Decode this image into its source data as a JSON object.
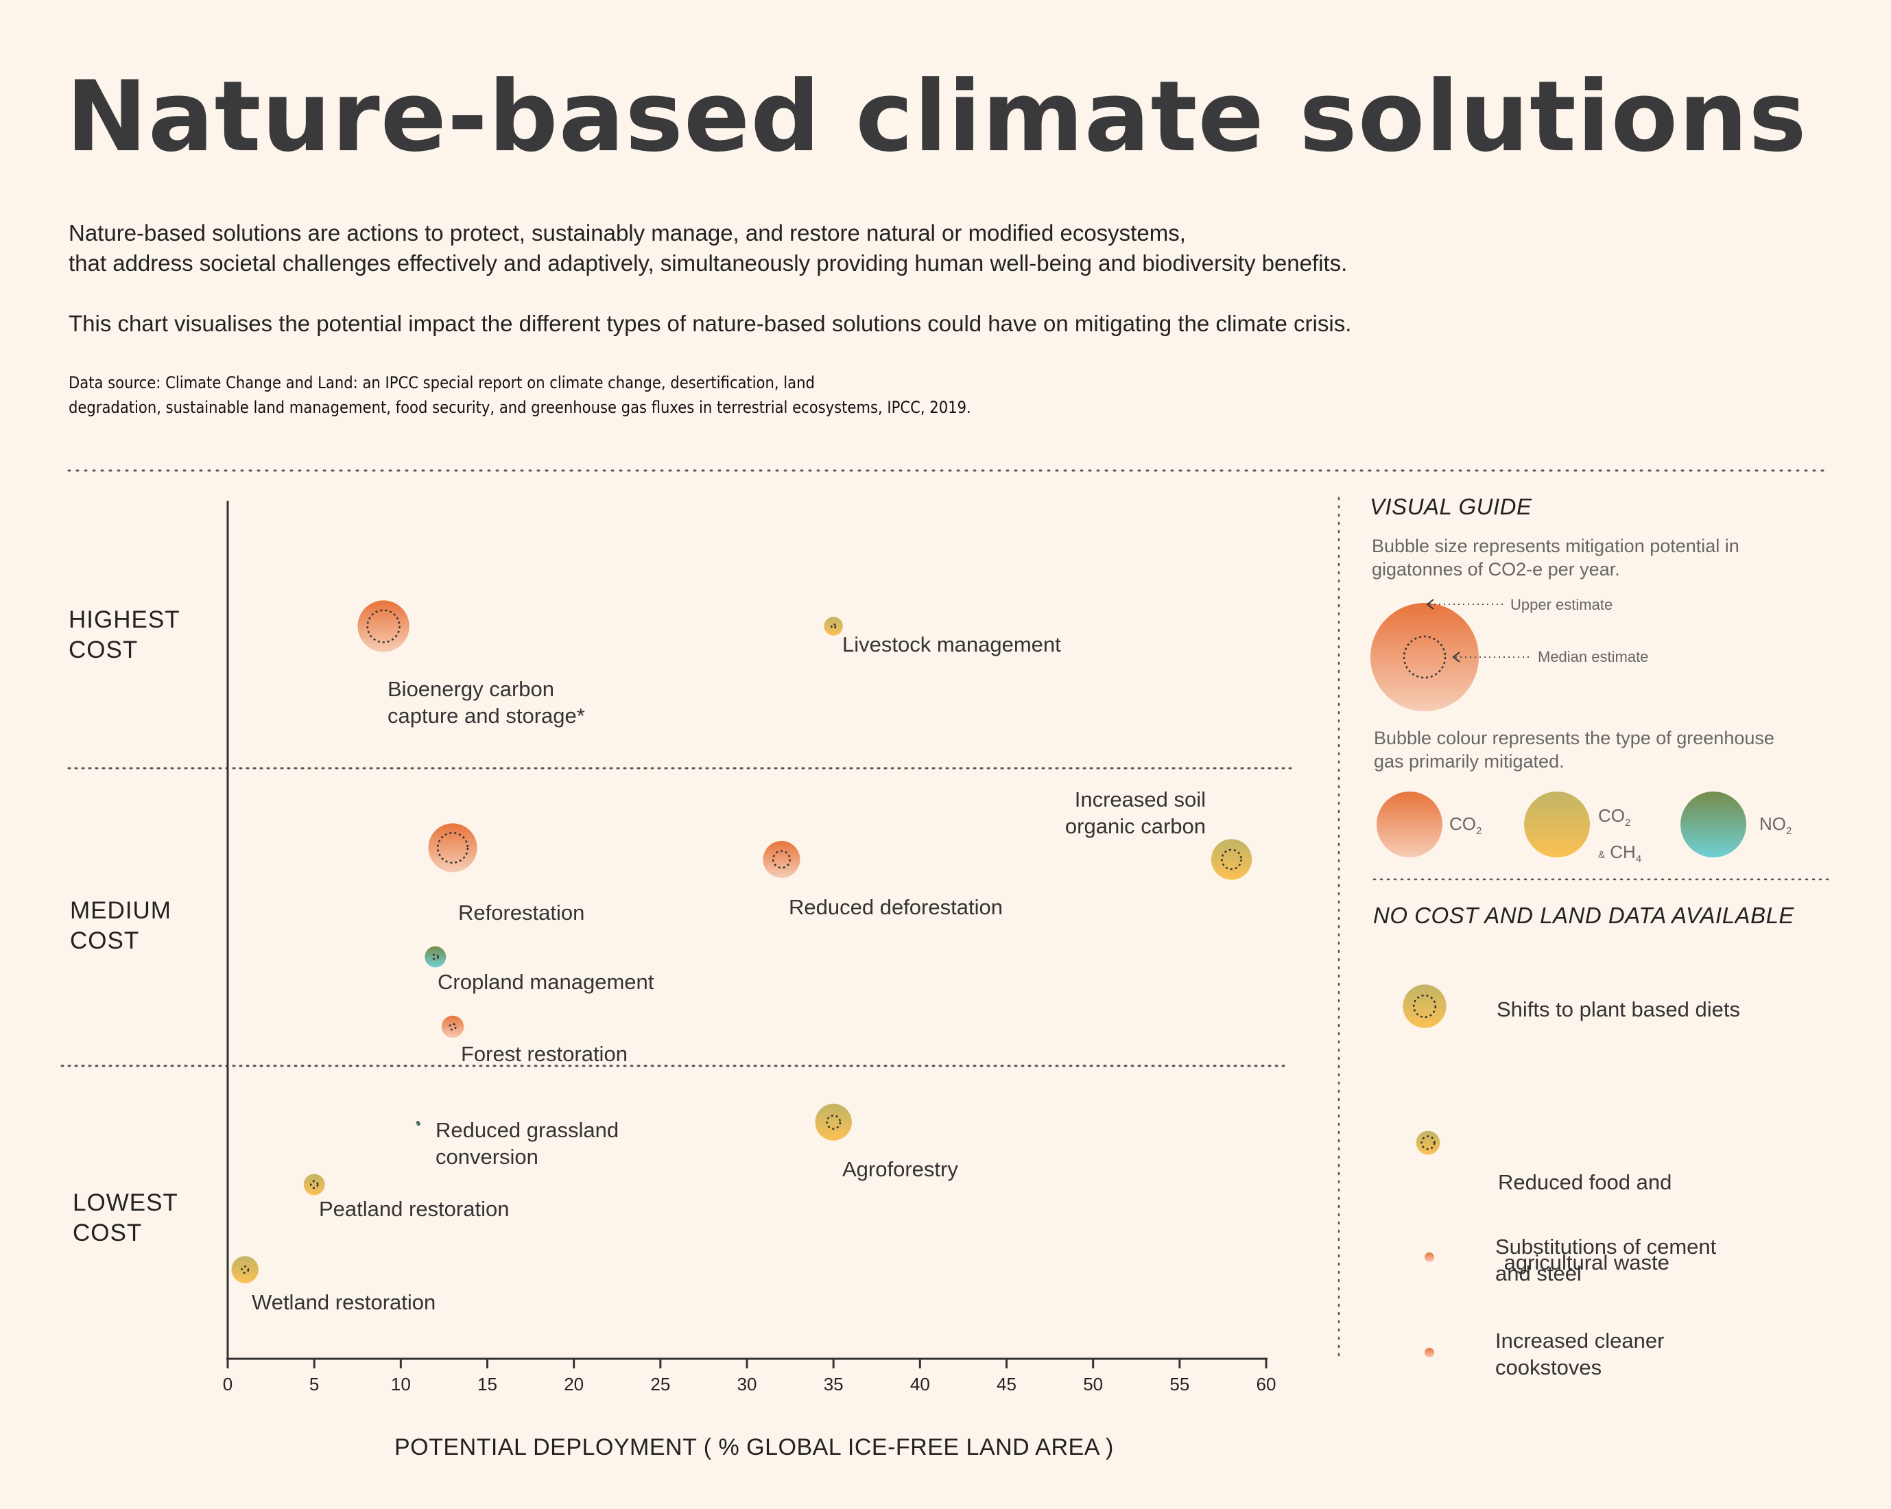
{
  "title": "Nature-based climate solutions",
  "intro": {
    "line1": "Nature-based solutions are actions to protect, sustainably manage, and restore natural or modified ecosystems,",
    "line2": "that address societal challenges effectively and adaptively, simultaneously providing human well-being and biodiversity benefits.",
    "line3": "This chart visualises the potential impact the different types of nature-based solutions could have on mitigating the climate crisis."
  },
  "source": {
    "line1": "Data source: Climate Change and Land: an IPCC special report on climate change, desertification, land",
    "line2": "degradation, sustainable land management, food security, and greenhouse gas fluxes in terrestrial ecosystems, IPCC, 2019."
  },
  "cost_bands": {
    "highest": [
      "HIGHEST",
      "COST"
    ],
    "medium": [
      "MEDIUM",
      "COST"
    ],
    "lowest": [
      "LOWEST",
      "COST"
    ]
  },
  "colors": {
    "background": "#fdf5ec",
    "co2_top": "#e8743b",
    "co2_bottom": "#f6cdb6",
    "co2ch4_top": "#c2b466",
    "co2ch4_bottom": "#fbc154",
    "no2_top": "#758c4c",
    "no2_bottom": "#6fd0d4"
  },
  "chart_data": {
    "type": "scatter",
    "subtype": "bubble",
    "xlabel": "POTENTIAL DEPLOYMENT ( % GLOBAL ICE-FREE LAND AREA )",
    "xlim": [
      0,
      60
    ],
    "xticks": [
      0,
      5,
      10,
      15,
      20,
      25,
      30,
      35,
      40,
      45,
      50,
      55,
      60
    ],
    "y_categories": [
      "LOWEST COST",
      "MEDIUM COST",
      "HIGHEST COST"
    ],
    "size_meaning": "mitigation potential (upper estimate outer bubble, median estimate dashed inner circle)",
    "series": [
      {
        "label": [
          "Bioenergy carbon",
          "capture and storage*"
        ],
        "x": 9,
        "cost": "HIGHEST COST",
        "gas": "co2",
        "upper": 11.3,
        "median": 4.35
      },
      {
        "label": [
          "Livestock management"
        ],
        "x": 35,
        "cost": "HIGHEST COST",
        "gas": "co2ch4",
        "upper": 1.5,
        "median": 0.07
      },
      {
        "label": [
          "Reforestation"
        ],
        "x": 13,
        "cost": "MEDIUM COST",
        "gas": "co2",
        "upper": 10.1,
        "median": 3.8
      },
      {
        "label": [
          "Reduced deforestation"
        ],
        "x": 32,
        "cost": "MEDIUM COST",
        "gas": "co2",
        "upper": 5.8,
        "median": 1.2
      },
      {
        "label": [
          "Increased soil",
          "organic carbon"
        ],
        "x": 58,
        "cost": "MEDIUM COST",
        "gas": "co2ch4",
        "upper": 7.0,
        "median": 1.6
      },
      {
        "label": [
          "Cropland management"
        ],
        "x": 12,
        "cost": "MEDIUM COST",
        "gas": "no2",
        "upper": 1.9,
        "median": 0.12
      },
      {
        "label": [
          "Forest restoration"
        ],
        "x": 13,
        "cost": "MEDIUM COST",
        "gas": "co2",
        "upper": 2.1,
        "median": 0.15
      },
      {
        "label": [
          "Reduced grassland",
          "conversion"
        ],
        "x": 11,
        "cost": "LOWEST COST",
        "gas": "no2",
        "upper": 0.08,
        "median": 0.03
      },
      {
        "label": [
          "Agroforestry"
        ],
        "x": 35,
        "cost": "LOWEST COST",
        "gas": "co2ch4",
        "upper": 5.7,
        "median": 0.75
      },
      {
        "label": [
          "Peatland restoration"
        ],
        "x": 5,
        "cost": "LOWEST COST",
        "gas": "co2ch4",
        "upper": 1.9,
        "median": 0.2
      },
      {
        "label": [
          "Wetland restoration"
        ],
        "x": 1,
        "cost": "LOWEST COST",
        "gas": "co2ch4",
        "upper": 3.1,
        "median": 0.18
      }
    ]
  },
  "guide": {
    "title": "VISUAL GUIDE",
    "size_text": [
      "Bubble size represents mitigation potential in",
      "gigatonnes of CO2-e per year."
    ],
    "upper_label": "Upper estimate",
    "median_label": "Median estimate",
    "colour_text": [
      "Bubble colour represents the type of  greenhouse",
      "gas primarily mitigated."
    ],
    "gas": {
      "co2": {
        "main": "CO",
        "sub": "2"
      },
      "co2ch4": {
        "main": "CO",
        "sub": "2",
        "amp": "&",
        "main2": "CH",
        "sub2": "4"
      },
      "no2": {
        "main": "NO",
        "sub": "2"
      }
    }
  },
  "no_cost": {
    "title": "NO COST AND LAND DATA AVAILABLE",
    "items": [
      {
        "label": [
          "Shifts to plant based diets"
        ],
        "gas": "co2ch4",
        "upper": 8.0,
        "median": 2.0
      },
      {
        "label": [
          "Reduced food and",
          " agricultural waste"
        ],
        "gas": "co2ch4",
        "upper": 2.4,
        "median": 0.7
      },
      {
        "label": [
          "Substitutions of cement",
          "and steel"
        ],
        "gas": "co2",
        "upper": 0.04,
        "median": 0
      },
      {
        "label": [
          "Increased cleaner",
          "cookstoves"
        ],
        "gas": "co2",
        "upper": 0.03,
        "median": 0
      }
    ]
  }
}
